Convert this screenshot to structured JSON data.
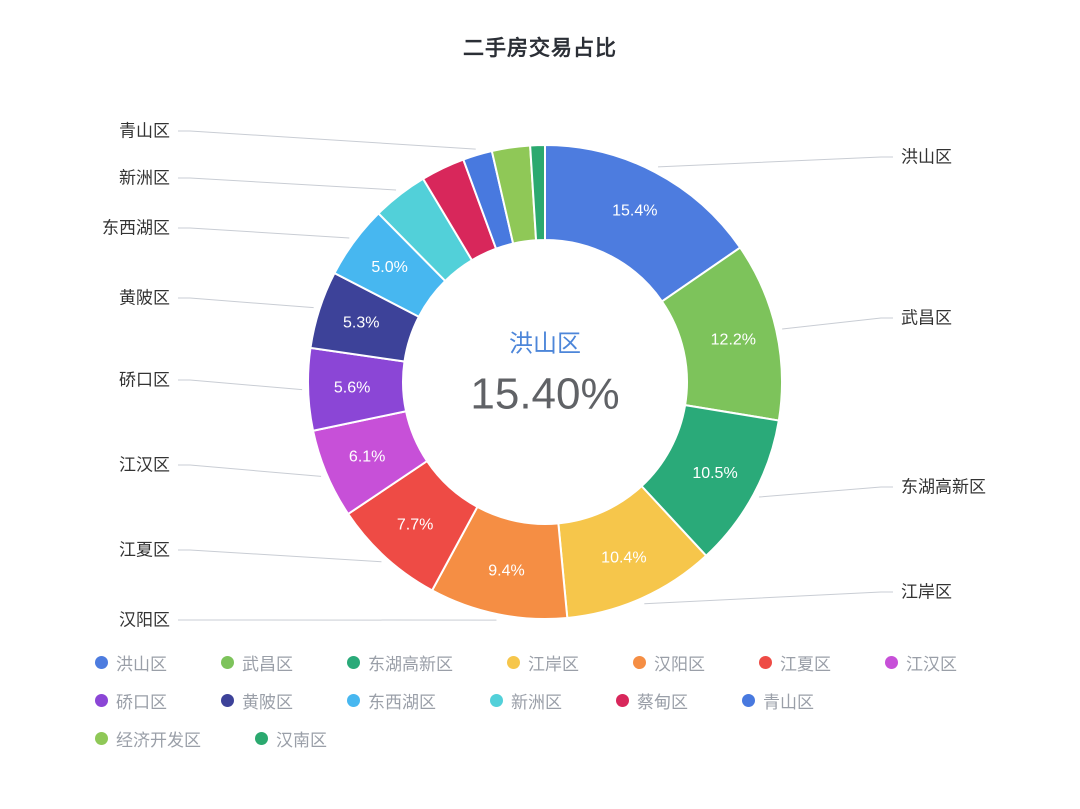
{
  "title": "二手房交易占比",
  "center_label": {
    "name": "洪山区",
    "value": "15.40%"
  },
  "colors": {
    "accent_blue": "#4d7cdf",
    "label_text": "#333333",
    "legend_text": "#9a9fa8",
    "leader_line": "#c9cdd4"
  },
  "chart_data": {
    "type": "pie",
    "style": "donut",
    "title": "二手房交易占比",
    "legend_position": "bottom",
    "center_text": {
      "name": "洪山区",
      "value": "15.40%"
    },
    "segments": [
      {
        "name": "洪山区",
        "value": 15.4,
        "pct_label": "15.4%",
        "color": "#4d7cdf"
      },
      {
        "name": "武昌区",
        "value": 12.2,
        "pct_label": "12.2%",
        "color": "#7dc35b"
      },
      {
        "name": "东湖高新区",
        "value": 10.5,
        "pct_label": "10.5%",
        "color": "#2aaa79"
      },
      {
        "name": "江岸区",
        "value": 10.4,
        "pct_label": "10.4%",
        "color": "#f6c64b"
      },
      {
        "name": "汉阳区",
        "value": 9.4,
        "pct_label": "9.4%",
        "color": "#f58e44"
      },
      {
        "name": "江夏区",
        "value": 7.7,
        "pct_label": "7.7%",
        "color": "#ee4b45"
      },
      {
        "name": "江汉区",
        "value": 6.1,
        "pct_label": "6.1%",
        "color": "#c750d8"
      },
      {
        "name": "硚口区",
        "value": 5.6,
        "pct_label": "5.6%",
        "color": "#8b46d6"
      },
      {
        "name": "黄陂区",
        "value": 5.3,
        "pct_label": "5.3%",
        "color": "#3d4299"
      },
      {
        "name": "东西湖区",
        "value": 5.0,
        "pct_label": "5.0%",
        "color": "#47b7f0"
      },
      {
        "name": "新洲区",
        "value": 3.8,
        "pct_label": "",
        "color": "#52d0d9"
      },
      {
        "name": "蔡甸区",
        "value": 3.0,
        "pct_label": "",
        "color": "#d8275b"
      },
      {
        "name": "青山区",
        "value": 2.0,
        "pct_label": "",
        "color": "#4879df"
      },
      {
        "name": "经济开发区",
        "value": 2.6,
        "pct_label": "",
        "color": "#8fc857"
      },
      {
        "name": "汉南区",
        "value": 1.0,
        "pct_label": "",
        "color": "#2ba96f"
      }
    ]
  }
}
